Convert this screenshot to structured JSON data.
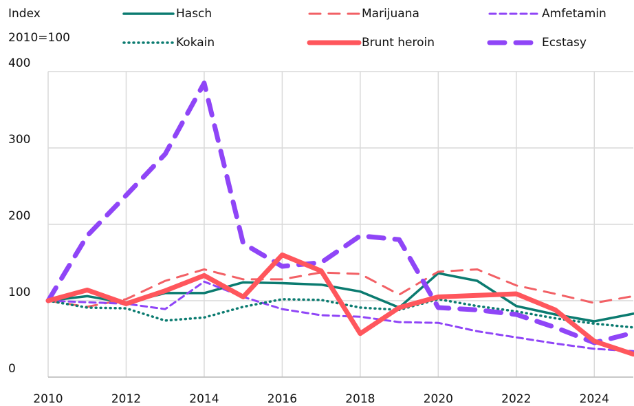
{
  "chart_data": {
    "type": "line",
    "ylabel": [
      "Index",
      "2010=100"
    ],
    "x": [
      2010,
      2011,
      2012,
      2013,
      2014,
      2015,
      2016,
      2017,
      2018,
      2019,
      2020,
      2021,
      2022,
      2023,
      2024,
      2025
    ],
    "series": [
      {
        "name": "Hasch",
        "color": "#0b7b70",
        "width": 3.5,
        "dash": "none",
        "values": [
          100,
          106,
          97,
          110,
          110,
          124,
          123,
          121,
          112,
          91,
          136,
          126,
          93,
          82,
          73,
          83
        ]
      },
      {
        "name": "Marijuana",
        "color": "#f26065",
        "width": 3,
        "dash": "16 12",
        "values": [
          100,
          92,
          102,
          126,
          141,
          128,
          128,
          137,
          135,
          108,
          138,
          141,
          120,
          109,
          97,
          106
        ]
      },
      {
        "name": "Amfetamin",
        "color": "#8f45f7",
        "width": 3,
        "dash": "9 6",
        "values": [
          100,
          98,
          96,
          89,
          125,
          105,
          89,
          81,
          79,
          72,
          71,
          60,
          52,
          44,
          37,
          34
        ]
      },
      {
        "name": "Kokain",
        "color": "#0b7b70",
        "width": 3.5,
        "dash": "1 6",
        "values": [
          100,
          91,
          90,
          74,
          78,
          92,
          102,
          101,
          91,
          88,
          102,
          93,
          86,
          77,
          70,
          65
        ]
      },
      {
        "name": "Brunt heroin",
        "color": "#ff565c",
        "width": 7,
        "dash": "none",
        "values": [
          100,
          114,
          96,
          113,
          133,
          105,
          160,
          139,
          57,
          91,
          105,
          107,
          109,
          88,
          47,
          30
        ]
      },
      {
        "name": "Ecstasy",
        "color": "#8f45f7",
        "width": 7,
        "dash": "22 16",
        "values": [
          100,
          185,
          238,
          292,
          385,
          175,
          145,
          150,
          185,
          180,
          91,
          88,
          82,
          65,
          45,
          58
        ]
      }
    ],
    "xlim": [
      2010,
      2025
    ],
    "xticks": [
      2010,
      2012,
      2014,
      2016,
      2018,
      2020,
      2022,
      2024
    ],
    "ylim": [
      0,
      400
    ],
    "yticks": [
      0,
      100,
      200,
      300,
      400
    ],
    "grid": true
  }
}
